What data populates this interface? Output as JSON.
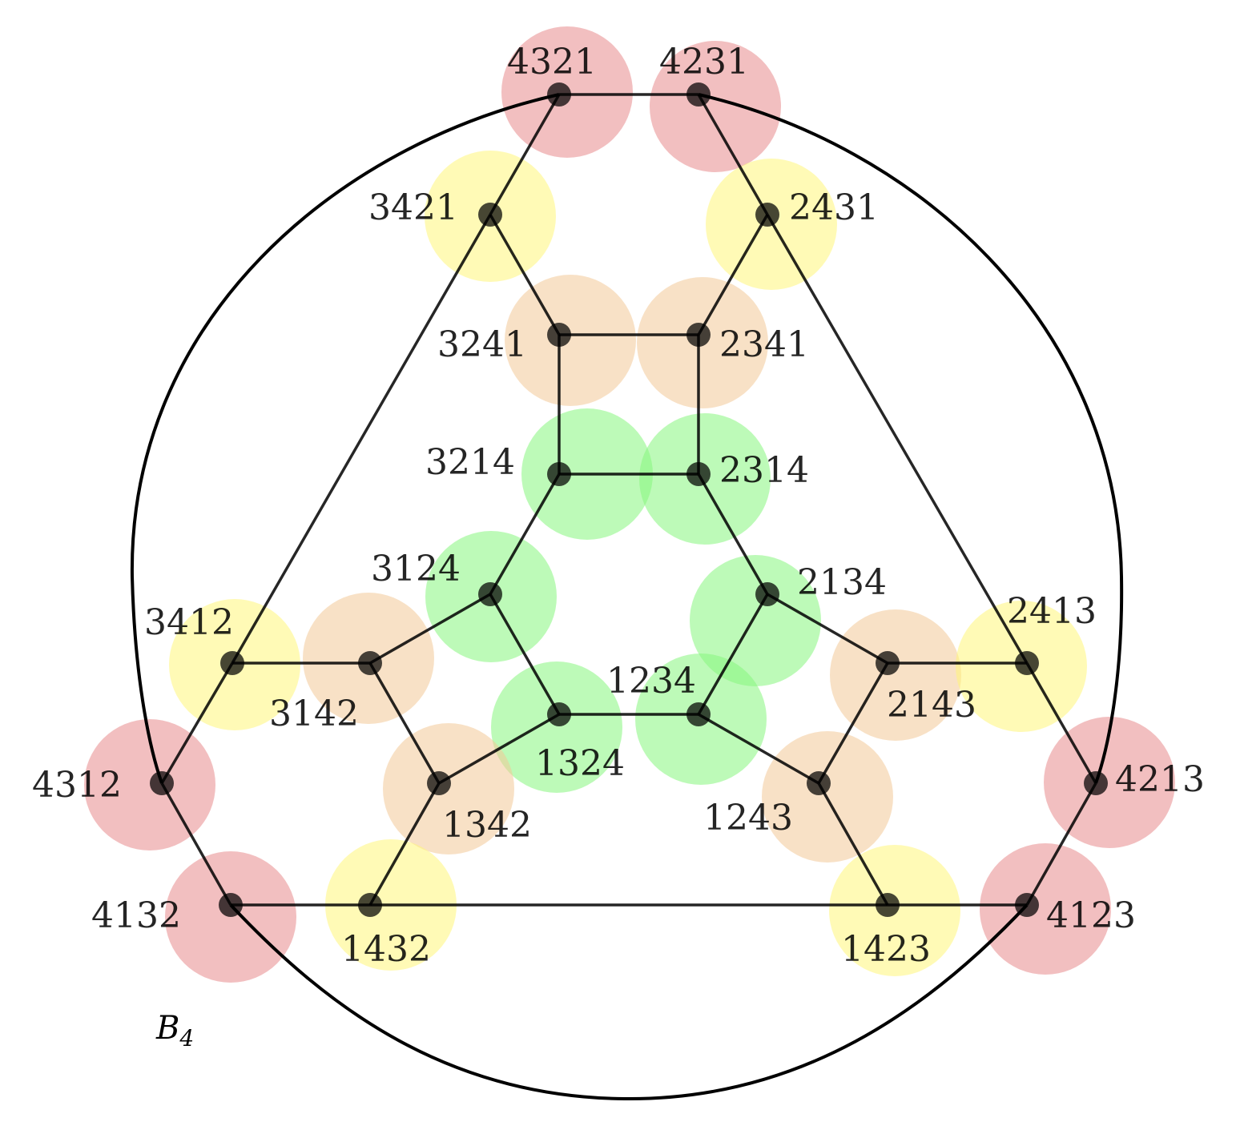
{
  "caption": {
    "main": "B",
    "sub": "4"
  },
  "colors": {
    "red": "#e88a8c",
    "yellow": "#fff57a",
    "orange": "#f2c898",
    "green": "#86f57d"
  },
  "nodes": [
    {
      "id": "4321",
      "label": "4321",
      "group": "red"
    },
    {
      "id": "4231",
      "label": "4231",
      "group": "red"
    },
    {
      "id": "3421",
      "label": "3421",
      "group": "yellow"
    },
    {
      "id": "2431",
      "label": "2431",
      "group": "yellow"
    },
    {
      "id": "3241",
      "label": "3241",
      "group": "orange"
    },
    {
      "id": "2341",
      "label": "2341",
      "group": "orange"
    },
    {
      "id": "3214",
      "label": "3214",
      "group": "green"
    },
    {
      "id": "2314",
      "label": "2314",
      "group": "green"
    },
    {
      "id": "3124",
      "label": "3124",
      "group": "green"
    },
    {
      "id": "2134",
      "label": "2134",
      "group": "green"
    },
    {
      "id": "3412",
      "label": "3412",
      "group": "yellow"
    },
    {
      "id": "3142",
      "label": "3142",
      "group": "orange"
    },
    {
      "id": "2143",
      "label": "2143",
      "group": "orange"
    },
    {
      "id": "2413",
      "label": "2413",
      "group": "yellow"
    },
    {
      "id": "1324",
      "label": "1324",
      "group": "green"
    },
    {
      "id": "1234",
      "label": "1234",
      "group": "green"
    },
    {
      "id": "4312",
      "label": "4312",
      "group": "red"
    },
    {
      "id": "4213",
      "label": "4213",
      "group": "red"
    },
    {
      "id": "1342",
      "label": "1342",
      "group": "orange"
    },
    {
      "id": "1243",
      "label": "1243",
      "group": "orange"
    },
    {
      "id": "4132",
      "label": "4132",
      "group": "red"
    },
    {
      "id": "4123",
      "label": "4123",
      "group": "red"
    },
    {
      "id": "1432",
      "label": "1432",
      "group": "yellow"
    },
    {
      "id": "1423",
      "label": "1423",
      "group": "yellow"
    }
  ],
  "edges": [
    [
      "4321",
      "4231"
    ],
    [
      "4321",
      "3421"
    ],
    [
      "4231",
      "2431"
    ],
    [
      "3421",
      "3241"
    ],
    [
      "2431",
      "2341"
    ],
    [
      "3241",
      "2341"
    ],
    [
      "3241",
      "3214"
    ],
    [
      "2341",
      "2314"
    ],
    [
      "3214",
      "2314"
    ],
    [
      "3214",
      "3124"
    ],
    [
      "2314",
      "2134"
    ],
    [
      "3124",
      "3142"
    ],
    [
      "3124",
      "1324"
    ],
    [
      "2134",
      "1234"
    ],
    [
      "2134",
      "2143"
    ],
    [
      "1324",
      "1234"
    ],
    [
      "1324",
      "1342"
    ],
    [
      "1234",
      "1243"
    ],
    [
      "3142",
      "3412"
    ],
    [
      "3142",
      "1342"
    ],
    [
      "2143",
      "2413"
    ],
    [
      "2143",
      "1243"
    ],
    [
      "3421",
      "3412"
    ],
    [
      "2431",
      "2413"
    ],
    [
      "3412",
      "4312"
    ],
    [
      "2413",
      "4213"
    ],
    [
      "1342",
      "1432"
    ],
    [
      "1243",
      "1423"
    ],
    [
      "4312",
      "4132"
    ],
    [
      "4213",
      "4123"
    ],
    [
      "4132",
      "1432"
    ],
    [
      "1432",
      "1423"
    ],
    [
      "1423",
      "4123"
    ]
  ],
  "outer_curves": [
    [
      "4321",
      "4312"
    ],
    [
      "4231",
      "4213"
    ],
    [
      "4132",
      "4123"
    ]
  ]
}
